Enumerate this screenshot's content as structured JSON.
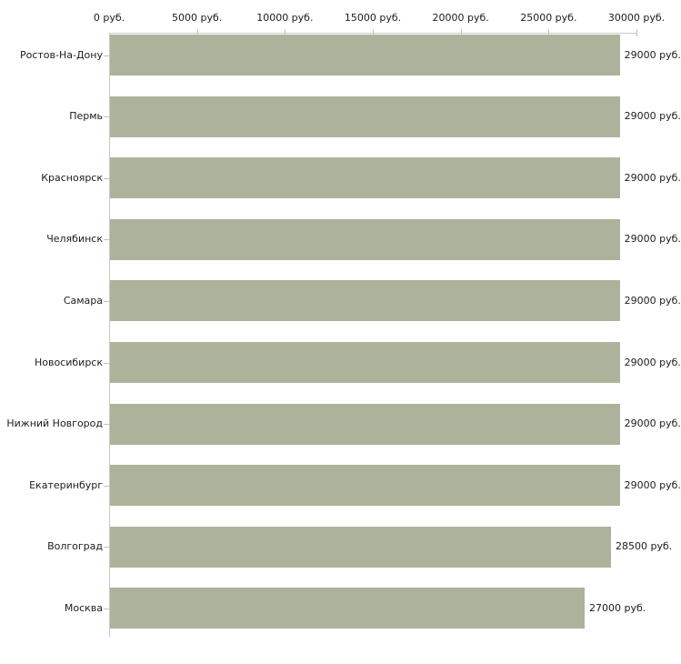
{
  "chart_data": {
    "type": "bar",
    "orientation": "horizontal",
    "title": "",
    "categories": [
      "Ростов-На-Дону",
      "Пермь",
      "Красноярск",
      "Челябинск",
      "Самара",
      "Новосибирск",
      "Нижний Новгород",
      "Екатеринбург",
      "Волгоград",
      "Москва"
    ],
    "values": [
      29000,
      29000,
      29000,
      29000,
      29000,
      29000,
      29000,
      29000,
      28500,
      27000
    ],
    "value_labels": [
      "29000 руб.",
      "29000 руб.",
      "29000 руб.",
      "29000 руб.",
      "29000 руб.",
      "29000 руб.",
      "29000 руб.",
      "29000 руб.",
      "28500 руб.",
      "27000 руб."
    ],
    "x_axis": {
      "min": 0,
      "max": 30000,
      "position": "top",
      "unit": "руб.",
      "ticks": [
        0,
        5000,
        10000,
        15000,
        20000,
        25000,
        30000
      ],
      "tick_labels": [
        "0 руб.",
        "5000 руб.",
        "10000 руб.",
        "15000 руб.",
        "20000 руб.",
        "25000 руб.",
        "30000 руб."
      ]
    },
    "grid": false,
    "legend": false,
    "colors": {
      "bar": "#acb39a",
      "axis_line": "#c9c9c9",
      "tick": "#c6c6a3",
      "text": "#1c1c1c",
      "background": "#ffffff"
    }
  }
}
